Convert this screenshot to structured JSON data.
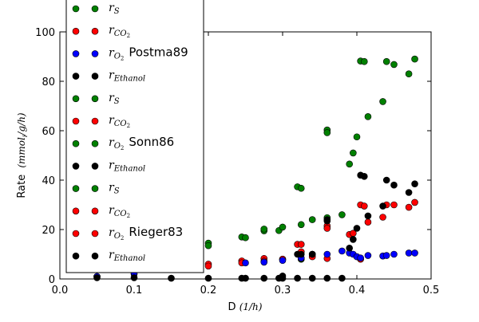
{
  "chart_data": {
    "type": "scatter",
    "xlabel": "D",
    "xlabel_unit": "(1/h)",
    "ylabel": "Rate",
    "ylabel_unit": "(mmol",
    "ylabel_unit_sub": "i",
    "ylabel_unit_tail": "/g/h)",
    "xlim": [
      0.0,
      0.5
    ],
    "ylim": [
      0,
      100
    ],
    "xticks": [
      0.0,
      0.1,
      0.2,
      0.3,
      0.4,
      0.5
    ],
    "xtick_labels": [
      "0.0",
      "0.1",
      "0.2",
      "0.3",
      "0.4",
      "0.5"
    ],
    "yticks": [
      0,
      20,
      40,
      60,
      80,
      100
    ],
    "ytick_labels": [
      "0",
      "20",
      "40",
      "60",
      "80",
      "100"
    ],
    "grid": false,
    "legend_placement": "upper-left",
    "colors": {
      "rS": "#008000",
      "rCO2": "#ff0000",
      "rO2": "#0000ff",
      "rEthanol": "#000000"
    },
    "legend_entries": [
      {
        "base": "r",
        "sub": "S",
        "color": "#008000",
        "group": ""
      },
      {
        "base": "r",
        "sub": "CO2",
        "sub_display": "CO",
        "sub_sub": "2",
        "color": "#ff0000",
        "group": ""
      },
      {
        "base": "r",
        "sub": "O2",
        "sub_display": "O",
        "sub_sub": "2",
        "color": "#0000ff",
        "group": "Postma89"
      },
      {
        "base": "r",
        "sub": "Ethanol",
        "color": "#000000",
        "group": ""
      },
      {
        "base": "r",
        "sub": "S",
        "color": "#008000",
        "group": ""
      },
      {
        "base": "r",
        "sub": "CO2",
        "sub_display": "CO",
        "sub_sub": "2",
        "color": "#ff0000",
        "group": ""
      },
      {
        "base": "r",
        "sub": "O2",
        "sub_display": "O",
        "sub_sub": "2",
        "color": "#008000",
        "group": "Sonn86"
      },
      {
        "base": "r",
        "sub": "Ethanol",
        "color": "#000000",
        "group": ""
      },
      {
        "base": "r",
        "sub": "S",
        "color": "#008000",
        "group": ""
      },
      {
        "base": "r",
        "sub": "CO2",
        "sub_display": "CO",
        "sub_sub": "2",
        "color": "#ff0000",
        "group": ""
      },
      {
        "base": "r",
        "sub": "O2",
        "sub_display": "O",
        "sub_sub": "2",
        "color": "#ff0000",
        "group": "Rieger83"
      },
      {
        "base": "r",
        "sub": "Ethanol",
        "color": "#000000",
        "group": ""
      }
    ],
    "series": [
      {
        "color": "#008000",
        "points": [
          [
            0.05,
            1.0
          ],
          [
            0.1,
            2.0
          ],
          [
            0.2,
            14.5
          ],
          [
            0.2,
            13.5
          ],
          [
            0.245,
            17.0
          ],
          [
            0.25,
            16.7
          ],
          [
            0.275,
            19.5
          ],
          [
            0.275,
            20.2
          ],
          [
            0.295,
            19.6
          ],
          [
            0.3,
            21.0
          ],
          [
            0.3,
            8.0
          ],
          [
            0.32,
            37.3
          ],
          [
            0.325,
            36.7
          ],
          [
            0.325,
            22.0
          ],
          [
            0.325,
            8.0
          ],
          [
            0.34,
            24.0
          ],
          [
            0.36,
            60.3
          ],
          [
            0.36,
            59.2
          ],
          [
            0.36,
            24.8
          ],
          [
            0.38,
            26.0
          ],
          [
            0.39,
            46.5
          ],
          [
            0.395,
            51.0
          ],
          [
            0.4,
            57.5
          ],
          [
            0.405,
            88.2
          ],
          [
            0.41,
            88.0
          ],
          [
            0.415,
            65.7
          ],
          [
            0.435,
            71.8
          ],
          [
            0.44,
            88.0
          ],
          [
            0.45,
            86.8
          ],
          [
            0.47,
            83.0
          ],
          [
            0.478,
            89.0
          ]
        ]
      },
      {
        "color": "#ff0000",
        "points": [
          [
            0.1,
            3.0
          ],
          [
            0.2,
            6.0
          ],
          [
            0.2,
            5.2
          ],
          [
            0.245,
            7.3
          ],
          [
            0.245,
            6.5
          ],
          [
            0.275,
            8.3
          ],
          [
            0.275,
            7.2
          ],
          [
            0.3,
            8.0
          ],
          [
            0.32,
            14.0
          ],
          [
            0.325,
            14.0
          ],
          [
            0.325,
            11.0
          ],
          [
            0.325,
            8.3
          ],
          [
            0.34,
            10.0
          ],
          [
            0.34,
            9.0
          ],
          [
            0.36,
            21.5
          ],
          [
            0.36,
            20.5
          ],
          [
            0.36,
            8.3
          ],
          [
            0.39,
            18.0
          ],
          [
            0.395,
            18.5
          ],
          [
            0.405,
            30.0
          ],
          [
            0.41,
            29.5
          ],
          [
            0.405,
            8.0
          ],
          [
            0.415,
            23.0
          ],
          [
            0.435,
            25.0
          ],
          [
            0.44,
            30.0
          ],
          [
            0.45,
            30.0
          ],
          [
            0.47,
            29.0
          ],
          [
            0.478,
            31.0
          ]
        ]
      },
      {
        "color": "#0000ff",
        "points": [
          [
            0.05,
            1.0
          ],
          [
            0.1,
            2.5
          ],
          [
            0.25,
            6.5
          ],
          [
            0.275,
            6.8
          ],
          [
            0.3,
            7.5
          ],
          [
            0.325,
            8.5
          ],
          [
            0.34,
            10.0
          ],
          [
            0.36,
            10.0
          ],
          [
            0.38,
            11.3
          ],
          [
            0.39,
            10.5
          ],
          [
            0.395,
            10.0
          ],
          [
            0.4,
            9.0
          ],
          [
            0.405,
            8.5
          ],
          [
            0.415,
            9.5
          ],
          [
            0.435,
            9.3
          ],
          [
            0.44,
            9.5
          ],
          [
            0.45,
            10.0
          ],
          [
            0.47,
            10.5
          ],
          [
            0.478,
            10.5
          ]
        ]
      },
      {
        "color": "#000000",
        "points": [
          [
            0.05,
            0.5
          ],
          [
            0.1,
            0.5
          ],
          [
            0.15,
            0.3
          ],
          [
            0.2,
            0.3
          ],
          [
            0.245,
            0.3
          ],
          [
            0.25,
            0.3
          ],
          [
            0.275,
            0.3
          ],
          [
            0.295,
            0.3
          ],
          [
            0.3,
            0.3
          ],
          [
            0.3,
            1.2
          ],
          [
            0.32,
            0.3
          ],
          [
            0.32,
            10.0
          ],
          [
            0.325,
            10.0
          ],
          [
            0.34,
            0.3
          ],
          [
            0.34,
            10.0
          ],
          [
            0.36,
            0.3
          ],
          [
            0.36,
            24.0
          ],
          [
            0.36,
            23.5
          ],
          [
            0.38,
            0.3
          ],
          [
            0.39,
            12.5
          ],
          [
            0.395,
            16.0
          ],
          [
            0.4,
            20.5
          ],
          [
            0.405,
            42.0
          ],
          [
            0.41,
            41.5
          ],
          [
            0.415,
            25.5
          ],
          [
            0.435,
            29.5
          ],
          [
            0.44,
            40.0
          ],
          [
            0.45,
            38.0
          ],
          [
            0.47,
            35.0
          ],
          [
            0.478,
            38.5
          ]
        ]
      }
    ]
  }
}
